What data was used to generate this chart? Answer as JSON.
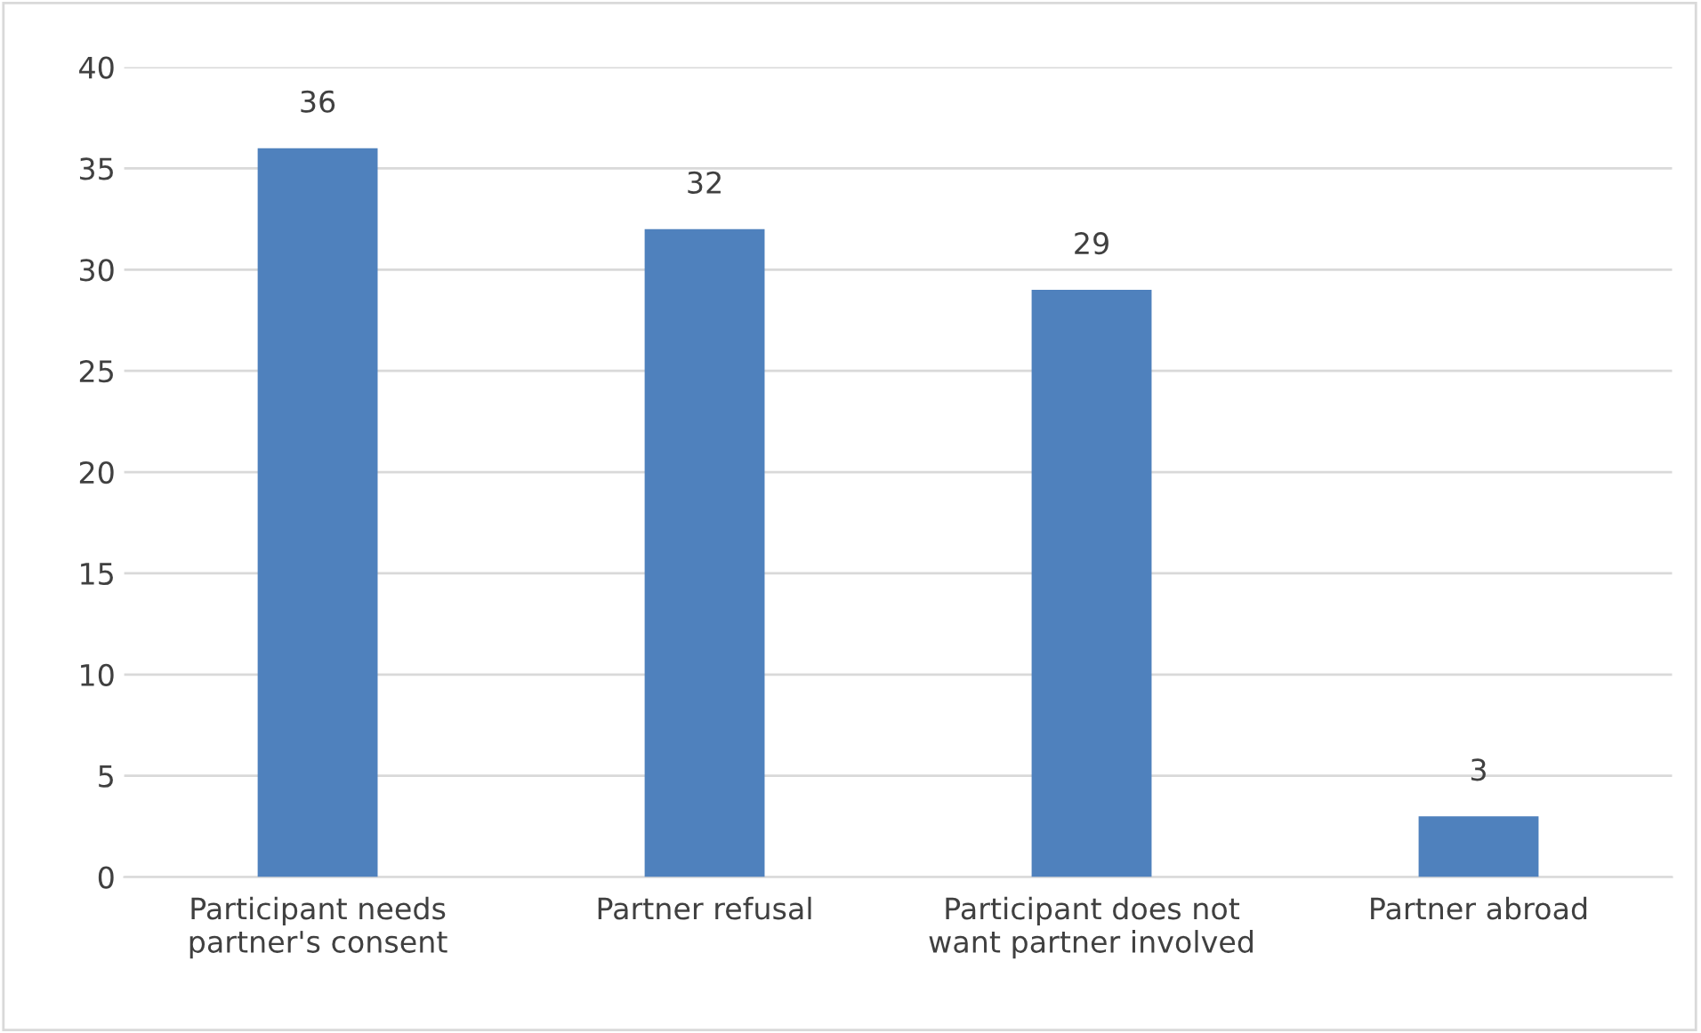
{
  "chart_data": {
    "type": "bar",
    "categories": [
      "Participant needs partner's consent",
      "Partner refusal",
      "Participant does not want partner involved",
      "Partner abroad"
    ],
    "values": [
      36,
      32,
      29,
      3
    ],
    "color": "#4f81bd",
    "ylim": [
      0,
      40
    ],
    "yticks": [
      0,
      5,
      10,
      15,
      20,
      25,
      30,
      35,
      40
    ],
    "grid": "y",
    "data_labels": true
  }
}
